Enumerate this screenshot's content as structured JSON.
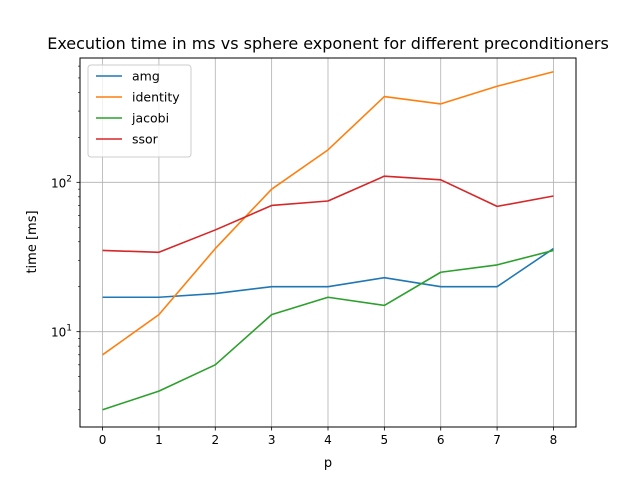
{
  "chart_data": {
    "type": "line",
    "title": "Execution time in ms vs sphere exponent for different preconditioners",
    "xlabel": "p",
    "ylabel": "time [ms]",
    "yscale": "log",
    "xlim": [
      -0.4,
      8.4
    ],
    "ylim": [
      2.3,
      680
    ],
    "x": [
      0,
      1,
      2,
      3,
      4,
      5,
      6,
      7,
      8
    ],
    "xticks": [
      "0",
      "1",
      "2",
      "3",
      "4",
      "5",
      "6",
      "7",
      "8"
    ],
    "yticks": [
      {
        "value": 10,
        "base": "10",
        "exp": "1"
      },
      {
        "value": 100,
        "base": "10",
        "exp": "2"
      }
    ],
    "grid": true,
    "legend_position": "top-left",
    "series": [
      {
        "name": "amg",
        "color": "#1f77b4",
        "values": [
          17,
          17,
          18,
          20,
          20,
          23,
          20,
          20,
          36
        ]
      },
      {
        "name": "identity",
        "color": "#ff7f0e",
        "values": [
          7,
          13,
          36,
          90,
          165,
          375,
          335,
          440,
          550
        ]
      },
      {
        "name": "jacobi",
        "color": "#2ca02c",
        "values": [
          3,
          4,
          6,
          13,
          17,
          15,
          25,
          28,
          35
        ]
      },
      {
        "name": "ssor",
        "color": "#d62728",
        "values": [
          35,
          34,
          48,
          70,
          75,
          110,
          104,
          69,
          81
        ]
      }
    ]
  }
}
